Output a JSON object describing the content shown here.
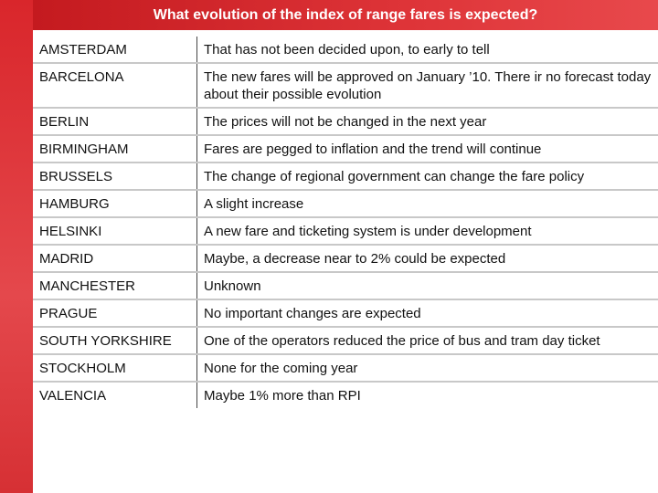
{
  "title": "What evolution of the index of range fares is expected?",
  "table": {
    "rows": [
      [
        "AMSTERDAM",
        "That has not been decided upon, to early to tell"
      ],
      [
        "BARCELONA",
        "The new fares will be approved on January ’10. There ir no forecast today about their possible evolution"
      ],
      [
        "BERLIN",
        "The prices will not be changed in the next year"
      ],
      [
        "BIRMINGHAM",
        "Fares are pegged to inflation and the trend will continue"
      ],
      [
        "BRUSSELS",
        "The change of regional government can change the fare policy"
      ],
      [
        "HAMBURG",
        "A slight increase"
      ],
      [
        "HELSINKI",
        "A new fare and ticketing system is under development"
      ],
      [
        "MADRID",
        "Maybe, a decrease near to 2% could be expected"
      ],
      [
        "MANCHESTER",
        "Unknown"
      ],
      [
        "PRAGUE",
        "No important changes are expected"
      ],
      [
        "SOUTH YORKSHIRE",
        "One of the operators reduced the price of bus and tram day ticket"
      ],
      [
        "STOCKHOLM",
        "None for the coming year"
      ],
      [
        "VALENCIA",
        "Maybe 1% more than RPI"
      ]
    ]
  }
}
